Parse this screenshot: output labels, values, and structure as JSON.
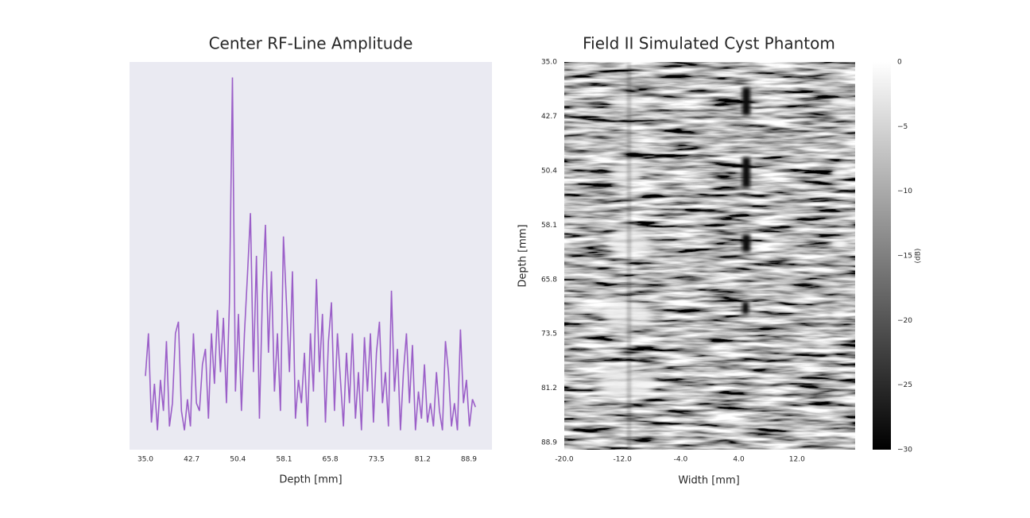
{
  "chart_data": [
    {
      "type": "line",
      "title": "Center RF-Line Amplitude",
      "xlabel": "Depth [mm]",
      "color": "#9b5fc8",
      "x": [
        35,
        35.5,
        36,
        36.5,
        37,
        37.5,
        38,
        38.5,
        39,
        39.5,
        40,
        40.5,
        41,
        41.5,
        42,
        42.5,
        43,
        43.5,
        44,
        44.5,
        45,
        45.5,
        46,
        46.5,
        47,
        47.5,
        48,
        48.5,
        49,
        49.5,
        50,
        50.5,
        51,
        51.5,
        52,
        52.5,
        53,
        53.5,
        54,
        54.5,
        55,
        55.5,
        56,
        56.5,
        57,
        57.5,
        58,
        58.5,
        59,
        59.5,
        60,
        60.5,
        61,
        61.5,
        62,
        62.5,
        63,
        63.5,
        64,
        64.5,
        65,
        65.5,
        66,
        66.5,
        67,
        67.5,
        68,
        68.5,
        69,
        69.5,
        70,
        70.5,
        71,
        71.5,
        72,
        72.5,
        73,
        73.5,
        74,
        74.5,
        75,
        75.5,
        76,
        76.5,
        77,
        77.5,
        78,
        78.5,
        79,
        79.5,
        80,
        80.5,
        81,
        81.5,
        82,
        82.5,
        83,
        83.5,
        84,
        84.5,
        85,
        85.5,
        86,
        86.5,
        87,
        87.5,
        88,
        88.5,
        89,
        89.5,
        90
      ],
      "values": [
        0.19,
        0.3,
        0.07,
        0.17,
        0.05,
        0.18,
        0.1,
        0.28,
        0.06,
        0.12,
        0.3,
        0.33,
        0.1,
        0.05,
        0.13,
        0.06,
        0.3,
        0.12,
        0.1,
        0.22,
        0.26,
        0.08,
        0.3,
        0.17,
        0.36,
        0.2,
        0.34,
        0.12,
        0.38,
        0.96,
        0.15,
        0.35,
        0.1,
        0.3,
        0.45,
        0.61,
        0.2,
        0.5,
        0.08,
        0.4,
        0.58,
        0.25,
        0.46,
        0.15,
        0.3,
        0.1,
        0.55,
        0.38,
        0.2,
        0.46,
        0.08,
        0.18,
        0.12,
        0.25,
        0.06,
        0.3,
        0.15,
        0.44,
        0.2,
        0.35,
        0.07,
        0.28,
        0.38,
        0.1,
        0.3,
        0.18,
        0.06,
        0.25,
        0.12,
        0.3,
        0.08,
        0.2,
        0.05,
        0.29,
        0.15,
        0.3,
        0.07,
        0.25,
        0.33,
        0.12,
        0.2,
        0.06,
        0.41,
        0.15,
        0.26,
        0.05,
        0.2,
        0.3,
        0.12,
        0.27,
        0.05,
        0.15,
        0.08,
        0.22,
        0.07,
        0.12,
        0.06,
        0.2,
        0.1,
        0.05,
        0.28,
        0.2,
        0.06,
        0.12,
        0.05,
        0.31,
        0.12,
        0.18,
        0.06,
        0.13,
        0.11
      ],
      "xlim": [
        32.35,
        92.75
      ],
      "ylim": [
        0,
        1
      ],
      "xticks": [
        {
          "value": 35,
          "label": "35.0"
        },
        42.7,
        50.4,
        58.1,
        65.8,
        73.5,
        81.2,
        88.9
      ]
    },
    {
      "type": "image",
      "title": "Field II Simulated Cyst Phantom",
      "xlabel": "Width [mm]",
      "ylabel": "Depth [mm]",
      "colormap": "gray",
      "xlim": [
        -20,
        20
      ],
      "ylim": [
        89.9,
        35
      ],
      "xticks": [
        {
          "value": -20,
          "label": "-20.0"
        },
        {
          "value": -12,
          "label": "-12.0"
        },
        {
          "value": -4,
          "label": "-4.0"
        },
        {
          "value": 4,
          "label": "4.0"
        },
        {
          "value": 12,
          "label": "12.0"
        }
      ],
      "yticks": [
        {
          "value": 35,
          "label": "35.0"
        },
        42.7,
        50.4,
        58.1,
        65.8,
        73.5,
        81.2,
        88.9
      ],
      "colorbar": {
        "label": "(dB)",
        "clim": [
          -30,
          0
        ],
        "ticks": [
          0,
          {
            "value": -5,
            "label": "−5"
          },
          {
            "value": -10,
            "label": "−10"
          },
          {
            "value": -15,
            "label": "−15"
          },
          {
            "value": -20,
            "label": "−20"
          },
          {
            "value": -25,
            "label": "−25"
          },
          {
            "value": -30,
            "label": "−30"
          }
        ]
      }
    }
  ]
}
